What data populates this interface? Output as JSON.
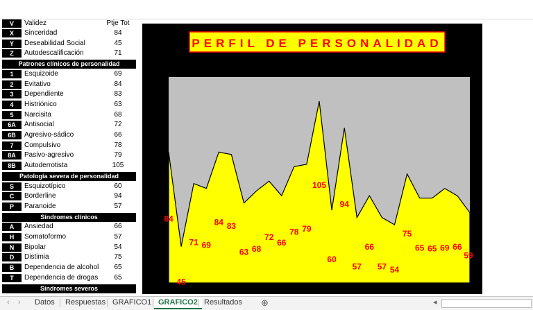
{
  "table": {
    "header": {
      "code": "V",
      "label": "Validez",
      "col": "Ptje Tot"
    },
    "validity": [
      {
        "code": "X",
        "label": "Sinceridad",
        "value": "84"
      },
      {
        "code": "Y",
        "label": "Deseabilidad Social",
        "value": "45"
      },
      {
        "code": "Z",
        "label": "Autodescalificación",
        "value": "71"
      }
    ],
    "sections": [
      {
        "title": "Patrones clínicos de personalidad",
        "rows": [
          {
            "code": "1",
            "label": "Esquizoide",
            "value": "69"
          },
          {
            "code": "2",
            "label": "Evitativo",
            "value": "84"
          },
          {
            "code": "3",
            "label": "Dependiente",
            "value": "83"
          },
          {
            "code": "4",
            "label": "Histriónico",
            "value": "63"
          },
          {
            "code": "5",
            "label": "Narcisita",
            "value": "68"
          },
          {
            "code": "6A",
            "label": "Antisocial",
            "value": "72"
          },
          {
            "code": "6B",
            "label": "Agresivo-sádico",
            "value": "66"
          },
          {
            "code": "7",
            "label": "Compulsivo",
            "value": "78"
          },
          {
            "code": "8A",
            "label": "Pasivo-agresivo",
            "value": "79"
          },
          {
            "code": "8B",
            "label": "Autoderrotista",
            "value": "105"
          }
        ]
      },
      {
        "title": "Patología severa de personalidad",
        "rows": [
          {
            "code": "S",
            "label": "Esquizotípico",
            "value": "60"
          },
          {
            "code": "C",
            "label": "Borderline",
            "value": "94"
          },
          {
            "code": "P",
            "label": "Paranoide",
            "value": "57"
          }
        ]
      },
      {
        "title": "Síndromes clínicos",
        "rows": [
          {
            "code": "A",
            "label": "Ansiedad",
            "value": "66"
          },
          {
            "code": "H",
            "label": "Somatoformo",
            "value": "57"
          },
          {
            "code": "N",
            "label": "Bipolar",
            "value": "54"
          },
          {
            "code": "D",
            "label": "Distimia",
            "value": "75"
          },
          {
            "code": "B",
            "label": "Dependencia de alcohol",
            "value": "65"
          },
          {
            "code": "T",
            "label": "Dependencia de drogas",
            "value": "65"
          }
        ]
      },
      {
        "title": "Síndromes severos",
        "rows": []
      }
    ]
  },
  "chart_data": {
    "type": "area",
    "title": "PERFIL DE PERSONALIDAD",
    "x": [
      "X",
      "Y",
      "Z",
      "1",
      "2",
      "3",
      "4",
      "5",
      "6A",
      "6B",
      "7",
      "8A",
      "8B",
      "S",
      "C",
      "P",
      "A",
      "H",
      "N",
      "D",
      "B",
      "T",
      "SS",
      "CC",
      "PP"
    ],
    "values": [
      84,
      45,
      71,
      69,
      84,
      83,
      63,
      68,
      72,
      66,
      78,
      79,
      105,
      60,
      94,
      57,
      66,
      57,
      54,
      75,
      65,
      65,
      69,
      66,
      59
    ],
    "ylim": [
      30,
      115
    ],
    "colors": {
      "fill": "#ffff00",
      "background": "#c0c0c0",
      "labels": "#ff0000",
      "frame": "#000000"
    }
  },
  "tabs": {
    "items": [
      "Datos",
      "Respuestas",
      "GRAFICO1",
      "GRAFICO2",
      "Resultados"
    ],
    "active": "GRAFICO2"
  }
}
